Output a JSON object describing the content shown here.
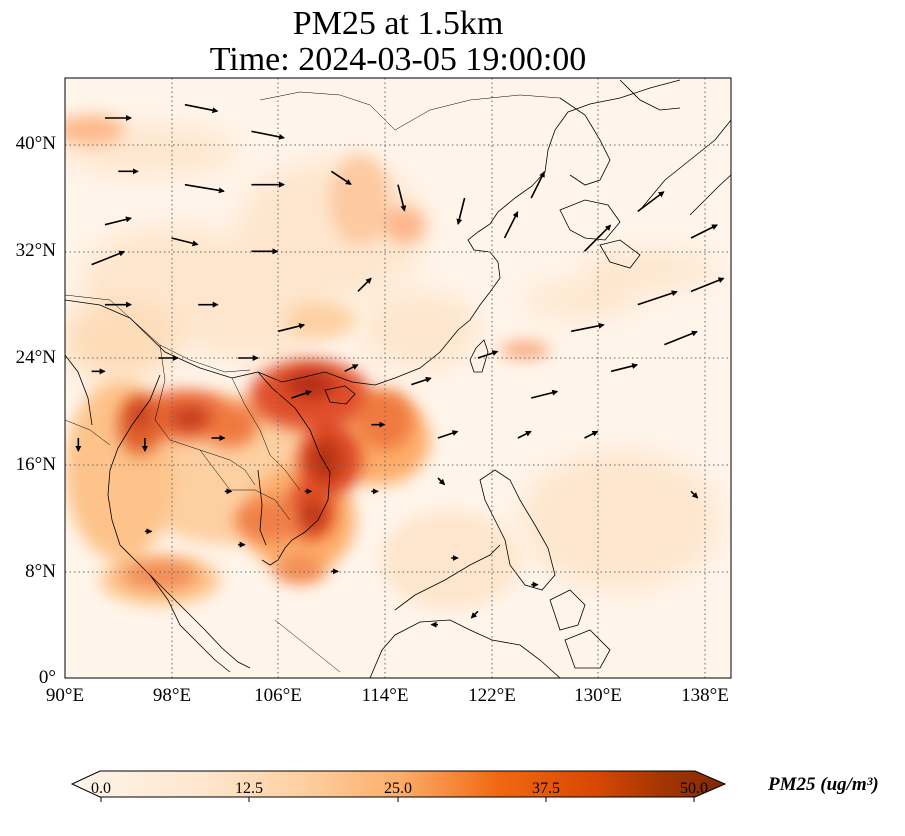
{
  "title": {
    "line1": "PM25 at 1.5km",
    "line2": "Time: 2024-03-05 19:00:00"
  },
  "axes": {
    "lat_ticks": [
      "40°N",
      "32°N",
      "24°N",
      "16°N",
      "8°N",
      "0°"
    ],
    "lon_ticks": [
      "90°E",
      "98°E",
      "106°E",
      "114°E",
      "122°E",
      "130°E",
      "138°E"
    ],
    "lon_range": [
      90,
      140
    ],
    "lat_range": [
      0,
      45
    ],
    "gridlines": "dotted"
  },
  "colorbar": {
    "label": "PM25 (ug/m³)",
    "ticks": [
      "0.0",
      "12.5",
      "25.0",
      "37.5",
      "50.0"
    ],
    "range": [
      0,
      50
    ],
    "extend": "both",
    "colormap": [
      "#fff5eb",
      "#fdd49e",
      "#fdae6b",
      "#f16913",
      "#d94801",
      "#a63603",
      "#7f2704"
    ]
  },
  "chart_data": {
    "type": "heatmap",
    "variable": "PM25",
    "units": "ug/m3",
    "high_concentration_regions": [
      {
        "lon": 110,
        "lat": 20,
        "value": 42
      },
      {
        "lon": 108,
        "lat": 16,
        "value": 40
      },
      {
        "lon": 107,
        "lat": 11,
        "value": 38
      },
      {
        "lon": 100,
        "lat": 19,
        "value": 36
      },
      {
        "lon": 105,
        "lat": 19,
        "value": 34
      },
      {
        "lon": 114,
        "lat": 21,
        "value": 32
      },
      {
        "lon": 95,
        "lat": 18,
        "value": 30
      },
      {
        "lon": 100,
        "lat": 12,
        "value": 26
      },
      {
        "lon": 97,
        "lat": 8,
        "value": 22
      },
      {
        "lon": 110,
        "lat": 33,
        "value": 16
      },
      {
        "lon": 116,
        "lat": 35,
        "value": 18
      },
      {
        "lon": 91,
        "lat": 41,
        "value": 16
      }
    ],
    "wind_vectors": [
      {
        "lon": 93,
        "lat": 42,
        "u": 4,
        "v": 0
      },
      {
        "lon": 99,
        "lat": 43,
        "u": 5,
        "v": -1
      },
      {
        "lon": 104,
        "lat": 41,
        "u": 5,
        "v": -1
      },
      {
        "lon": 94,
        "lat": 38,
        "u": 3,
        "v": 0
      },
      {
        "lon": 99,
        "lat": 37,
        "u": 6,
        "v": -1
      },
      {
        "lon": 104,
        "lat": 37,
        "u": 5,
        "v": 0
      },
      {
        "lon": 110,
        "lat": 38,
        "u": 3,
        "v": -2
      },
      {
        "lon": 93,
        "lat": 34,
        "u": 4,
        "v": 1
      },
      {
        "lon": 98,
        "lat": 33,
        "u": 4,
        "v": -1
      },
      {
        "lon": 104,
        "lat": 32,
        "u": 4,
        "v": 0
      },
      {
        "lon": 92,
        "lat": 31,
        "u": 5,
        "v": 2
      },
      {
        "lon": 93,
        "lat": 28,
        "u": 4,
        "v": 0
      },
      {
        "lon": 100,
        "lat": 28,
        "u": 3,
        "v": 0
      },
      {
        "lon": 106,
        "lat": 26,
        "u": 4,
        "v": 1
      },
      {
        "lon": 112,
        "lat": 29,
        "u": 2,
        "v": 2
      },
      {
        "lon": 115,
        "lat": 37,
        "u": 1,
        "v": -4
      },
      {
        "lon": 120,
        "lat": 36,
        "u": -1,
        "v": -4
      },
      {
        "lon": 123,
        "lat": 33,
        "u": 2,
        "v": 4
      },
      {
        "lon": 125,
        "lat": 36,
        "u": 2,
        "v": 4
      },
      {
        "lon": 129,
        "lat": 32,
        "u": 4,
        "v": 4
      },
      {
        "lon": 133,
        "lat": 35,
        "u": 4,
        "v": 3
      },
      {
        "lon": 137,
        "lat": 33,
        "u": 4,
        "v": 2
      },
      {
        "lon": 133,
        "lat": 28,
        "u": 6,
        "v": 2
      },
      {
        "lon": 137,
        "lat": 29,
        "u": 5,
        "v": 2
      },
      {
        "lon": 128,
        "lat": 26,
        "u": 5,
        "v": 1
      },
      {
        "lon": 131,
        "lat": 23,
        "u": 4,
        "v": 1
      },
      {
        "lon": 135,
        "lat": 25,
        "u": 5,
        "v": 2
      },
      {
        "lon": 125,
        "lat": 21,
        "u": 4,
        "v": 1
      },
      {
        "lon": 121,
        "lat": 24,
        "u": 3,
        "v": 1
      },
      {
        "lon": 116,
        "lat": 22,
        "u": 3,
        "v": 1
      },
      {
        "lon": 111,
        "lat": 23,
        "u": 2,
        "v": 1
      },
      {
        "lon": 103,
        "lat": 24,
        "u": 3,
        "v": 0
      },
      {
        "lon": 97,
        "lat": 24,
        "u": 3,
        "v": 0
      },
      {
        "lon": 92,
        "lat": 23,
        "u": 2,
        "v": 0
      },
      {
        "lon": 107,
        "lat": 21,
        "u": 3,
        "v": 1
      },
      {
        "lon": 113,
        "lat": 19,
        "u": 2,
        "v": 0
      },
      {
        "lon": 118,
        "lat": 18,
        "u": 3,
        "v": 1
      },
      {
        "lon": 124,
        "lat": 18,
        "u": 2,
        "v": 1
      },
      {
        "lon": 129,
        "lat": 18,
        "u": 2,
        "v": 1
      },
      {
        "lon": 101,
        "lat": 18,
        "u": 2,
        "v": 0
      },
      {
        "lon": 96,
        "lat": 18,
        "u": 0,
        "v": -2
      },
      {
        "lon": 91,
        "lat": 18,
        "u": 0,
        "v": -2
      },
      {
        "lon": 102,
        "lat": 14,
        "u": 1,
        "v": 0
      },
      {
        "lon": 108,
        "lat": 14,
        "u": 1,
        "v": 0
      },
      {
        "lon": 113,
        "lat": 14,
        "u": 1,
        "v": 0
      },
      {
        "lon": 118,
        "lat": 15,
        "u": 1,
        "v": -1
      },
      {
        "lon": 137,
        "lat": 14,
        "u": 1,
        "v": -1
      },
      {
        "lon": 96,
        "lat": 11,
        "u": 1,
        "v": 0
      },
      {
        "lon": 103,
        "lat": 10,
        "u": 1,
        "v": 0
      },
      {
        "lon": 110,
        "lat": 8,
        "u": 1,
        "v": 0
      },
      {
        "lon": 119,
        "lat": 9,
        "u": 1,
        "v": 0
      },
      {
        "lon": 125,
        "lat": 7,
        "u": 1,
        "v": 0
      },
      {
        "lon": 118,
        "lat": 4,
        "u": -1,
        "v": 0
      },
      {
        "lon": 121,
        "lat": 5,
        "u": -1,
        "v": -1
      }
    ]
  }
}
